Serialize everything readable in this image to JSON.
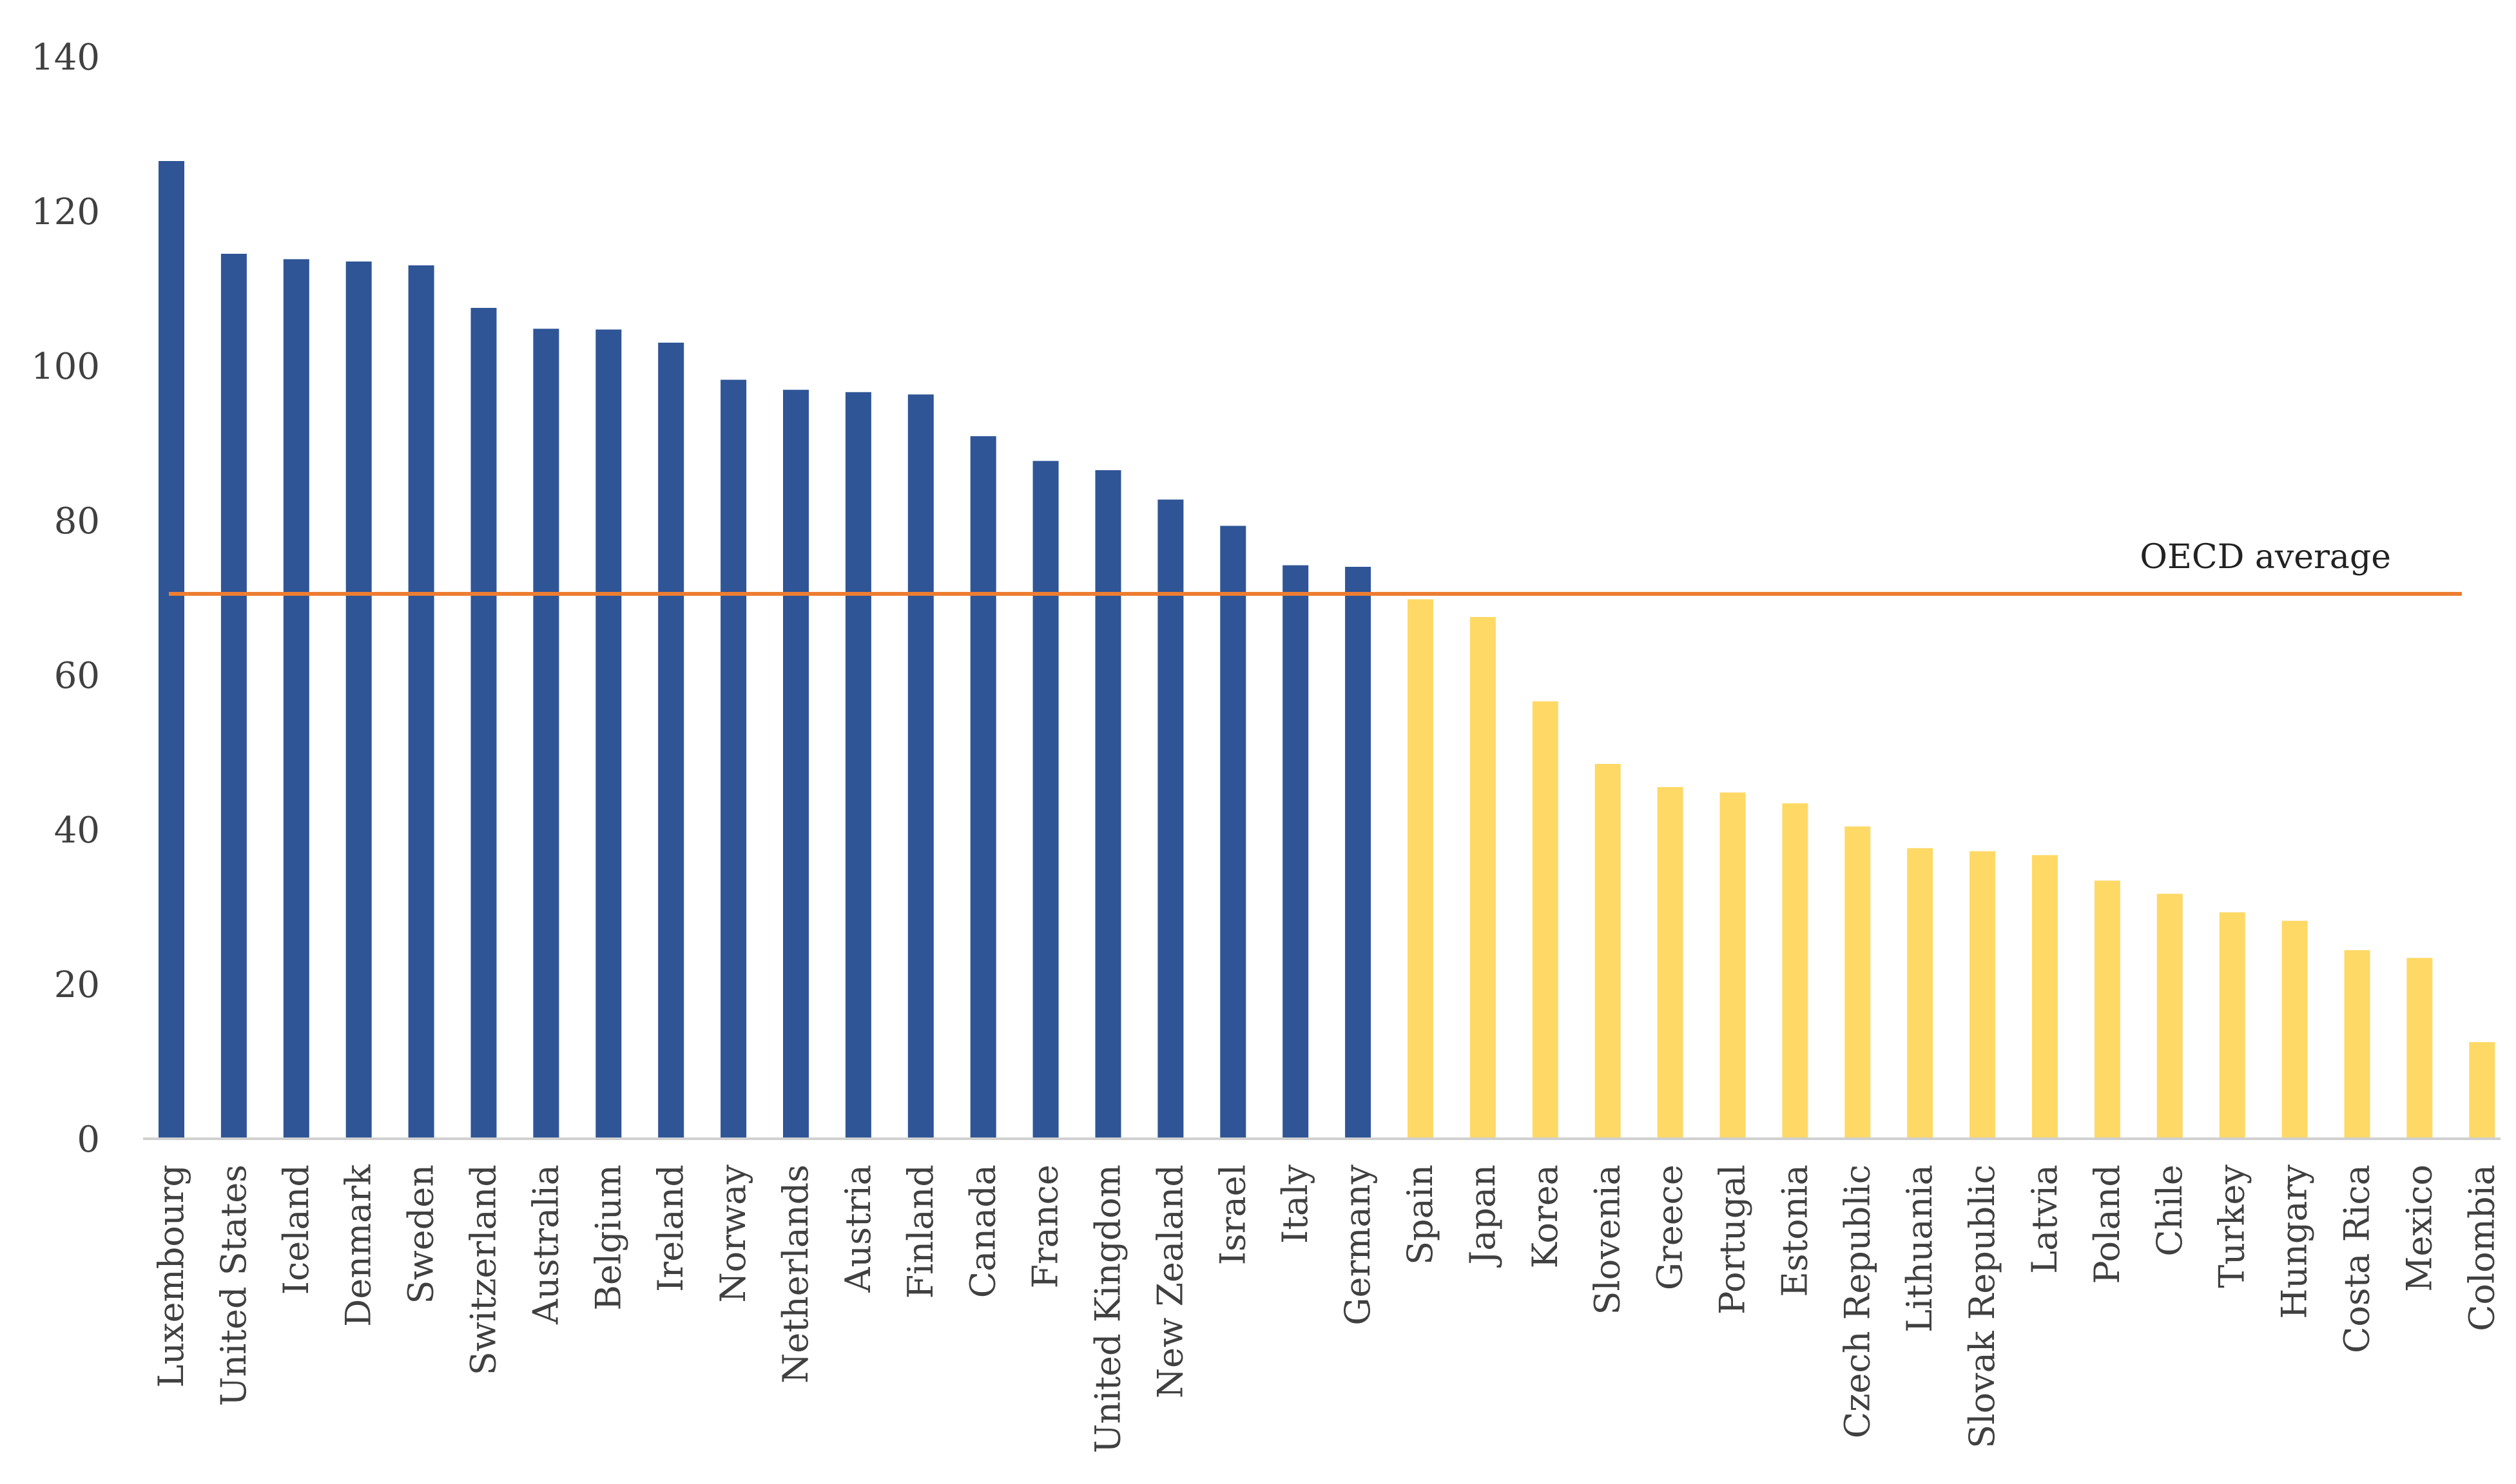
{
  "chart_data": {
    "type": "bar",
    "title": "",
    "xlabel": "",
    "ylabel": "",
    "ylim": [
      0,
      140
    ],
    "yticks": [
      "0",
      "20",
      "40",
      "60",
      "80",
      "100",
      "120",
      "140"
    ],
    "grid": false,
    "categories": [
      "Luxembourg",
      "United States",
      "Iceland",
      "Denmark",
      "Sweden",
      "Switzerland",
      "Australia",
      "Belgium",
      "Ireland",
      "Norway",
      "Netherlands",
      "Austria",
      "Finland",
      "Canada",
      "France",
      "United Kingdom",
      "New Zealand",
      "Israel",
      "Italy",
      "Germany",
      "Spain",
      "Japan",
      "Korea",
      "Slovenia",
      "Greece",
      "Portugal",
      "Estonia",
      "Czech Republic",
      "Lithuania",
      "Slovak Republic",
      "Latvia",
      "Poland",
      "Chile",
      "Turkey",
      "Hungary",
      "Costa Rica",
      "Mexico",
      "Colombia"
    ],
    "values": [
      126.5,
      114.5,
      113.8,
      113.5,
      113.0,
      107.5,
      104.8,
      104.7,
      103.0,
      98.2,
      96.9,
      96.6,
      96.3,
      90.9,
      87.7,
      86.5,
      82.7,
      79.3,
      74.2,
      74.0,
      69.8,
      67.5,
      56.6,
      48.5,
      45.5,
      44.8,
      43.4,
      40.4,
      37.6,
      37.2,
      36.7,
      33.4,
      31.7,
      29.3,
      28.2,
      24.4,
      23.4,
      12.5
    ],
    "above_avg_color": "#2F5597",
    "below_avg_color": "#FFD966",
    "reference_line": {
      "label": "OECD average",
      "value": 70.5,
      "color": "#ED7D31"
    }
  }
}
